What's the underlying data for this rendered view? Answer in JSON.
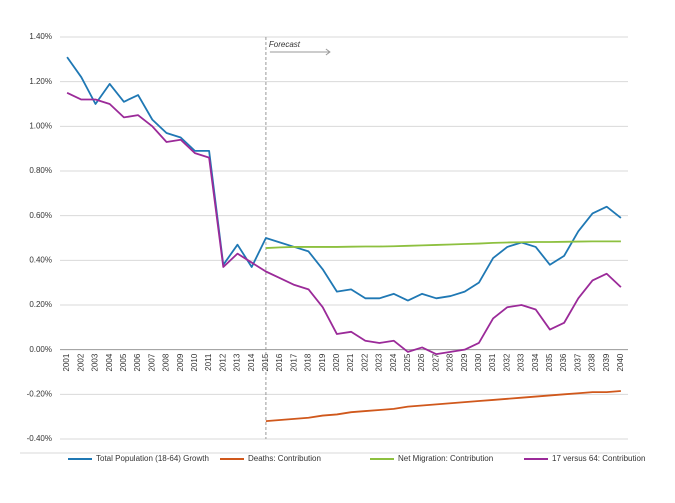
{
  "chart_data": {
    "type": "line",
    "categories": [
      "2001",
      "2002",
      "2003",
      "2004",
      "2005",
      "2006",
      "2007",
      "2008",
      "2009",
      "2010",
      "2011",
      "2012",
      "2013",
      "2014",
      "2015",
      "2016",
      "2017",
      "2018",
      "2019",
      "2020",
      "2021",
      "2022",
      "2023",
      "2024",
      "2025",
      "2026",
      "2027",
      "2028",
      "2029",
      "2030",
      "2031",
      "2032",
      "2033",
      "2034",
      "2035",
      "2036",
      "2037",
      "2038",
      "2039",
      "2040"
    ],
    "series": [
      {
        "name": "Total Population (18-64) Growth",
        "color": "#1f78b4",
        "values": [
          1.31,
          1.22,
          1.1,
          1.19,
          1.11,
          1.14,
          1.03,
          0.97,
          0.95,
          0.89,
          0.89,
          0.38,
          0.47,
          0.37,
          0.5,
          0.48,
          0.46,
          0.44,
          0.36,
          0.26,
          0.27,
          0.23,
          0.23,
          0.25,
          0.22,
          0.25,
          0.23,
          0.24,
          0.26,
          0.3,
          0.41,
          0.46,
          0.48,
          0.46,
          0.38,
          0.42,
          0.53,
          0.61,
          0.64,
          0.59
        ]
      },
      {
        "name": "Deaths: Contribution",
        "color": "#d0581c",
        "values": [
          null,
          null,
          null,
          null,
          null,
          null,
          null,
          null,
          null,
          null,
          null,
          null,
          null,
          null,
          -0.32,
          -0.315,
          -0.31,
          -0.305,
          -0.295,
          -0.29,
          -0.28,
          -0.275,
          -0.27,
          -0.265,
          -0.255,
          -0.25,
          -0.245,
          -0.24,
          -0.235,
          -0.23,
          -0.225,
          -0.22,
          -0.215,
          -0.21,
          -0.205,
          -0.2,
          -0.195,
          -0.19,
          -0.19,
          -0.185
        ]
      },
      {
        "name": "Net Migration: Contribution",
        "color": "#8dc03f",
        "values": [
          null,
          null,
          null,
          null,
          null,
          null,
          null,
          null,
          null,
          null,
          null,
          null,
          null,
          null,
          0.455,
          0.458,
          0.46,
          0.46,
          0.46,
          0.46,
          0.461,
          0.462,
          0.462,
          0.463,
          0.465,
          0.467,
          0.469,
          0.471,
          0.473,
          0.475,
          0.478,
          0.48,
          0.481,
          0.482,
          0.482,
          0.483,
          0.484,
          0.485,
          0.485,
          0.485
        ]
      },
      {
        "name": "17 versus 64: Contribution",
        "color": "#9b2a99",
        "values": [
          1.15,
          1.12,
          1.12,
          1.1,
          1.04,
          1.05,
          1.0,
          0.93,
          0.94,
          0.88,
          0.86,
          0.37,
          0.43,
          0.39,
          0.35,
          0.32,
          0.29,
          0.27,
          0.19,
          0.07,
          0.08,
          0.04,
          0.03,
          0.04,
          -0.01,
          0.01,
          -0.02,
          -0.01,
          0.0,
          0.03,
          0.14,
          0.19,
          0.2,
          0.18,
          0.09,
          0.12,
          0.23,
          0.31,
          0.34,
          0.28
        ]
      }
    ],
    "annotation": "Forecast",
    "ylim": [
      -0.4,
      1.4
    ],
    "yticks": [
      {
        "value": -0.4,
        "label": "-0.40%"
      },
      {
        "value": -0.2,
        "label": "-0.20%"
      },
      {
        "value": 0,
        "label": "0.00%"
      },
      {
        "value": 0.2,
        "label": "0.20%"
      },
      {
        "value": 0.4,
        "label": "0.40%"
      },
      {
        "value": 0.6,
        "label": "0.60%"
      },
      {
        "value": 0.8,
        "label": "0.80%"
      },
      {
        "value": 1.0,
        "label": "1.00%"
      },
      {
        "value": 1.2,
        "label": "1.20%"
      },
      {
        "value": 1.4,
        "label": "1.40%"
      }
    ],
    "grid": true
  }
}
